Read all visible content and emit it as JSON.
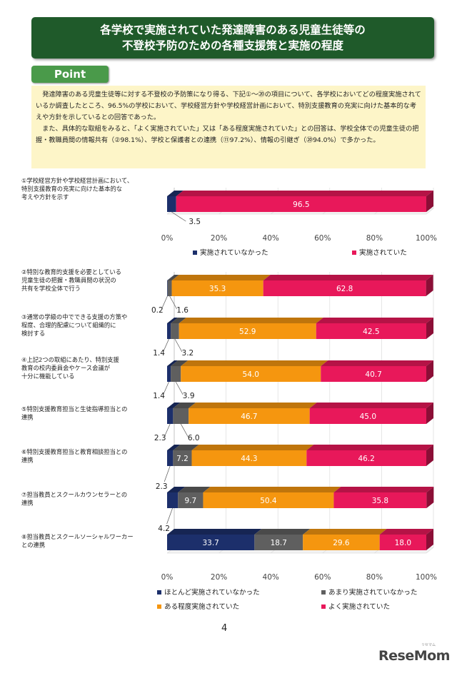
{
  "header": {
    "title_line1": "各学校で実施されていた発達障害のある児童生徒等の",
    "title_line2": "不登校予防のための各種支援策と実施の程度",
    "point_label": "Point"
  },
  "summary": {
    "para1": "発達障害のある児童生徒等に対する不登校の予防策になり得る、下記①～⑳の項目について、各学校においてどの程度実施されているか調査したところ、96.5%の学校において、学校経営方針や学校経営計画において、特別支援教育の充実に向けた基本的な考えや方針を示しているとの回答であった。",
    "para2": "また、具体的な取組をみると、「よく実施されていた」又は「ある程度実施されていた」との回答は、学校全体での児童生徒の把握・教職員間の情報共有（②98.1%）、学校と保護者との連携（⑪97.2%）、情報の引継ぎ（⑳94.0%）で多かった。"
  },
  "chart_data": [
    {
      "type": "bar",
      "orientation": "horizontal",
      "stacked": true,
      "categories": [
        "①学校経営方針や学校経営計画において、特別支援教育の充実に向けた基本的な考えや方針を示す"
      ],
      "category_lines": [
        [
          "①学校経営方針や学校経営計画において、",
          "特別支援教育の充実に向けた基本的な",
          "考えや方針を示す"
        ]
      ],
      "series": [
        {
          "name": "実施されていなかった",
          "color": "#1c2f6b",
          "values": [
            3.5
          ]
        },
        {
          "name": "実施されていた",
          "color": "#e8185a",
          "values": [
            96.5
          ]
        }
      ],
      "xlim": [
        0,
        100
      ],
      "xticks": [
        "0%",
        "20%",
        "40%",
        "60%",
        "80%",
        "100%"
      ],
      "legend_position": "bottom"
    },
    {
      "type": "bar",
      "orientation": "horizontal",
      "stacked": true,
      "categories": [
        "②特別な教育的支援を必要としている児童生徒の把握・教職員間の状況の共有を学校全体で行う",
        "③通常の学級の中でできる支援の方策や程度、合理的配慮について組織的に検討する",
        "④上記2つの取組にあたり、特別支援教育の校内委員会やケース会議が十分に機能している",
        "⑤特別支援教育担当と生徒指導担当との連携",
        "⑥特別支援教育担当と教育相談担当との連携",
        "⑦担当教員とスクールカウンセラーとの連携",
        "⑧担当教員とスクールソーシャルワーカーとの連携"
      ],
      "category_lines": [
        [
          "②特別な教育的支援を必要としている",
          "児童生徒の把握・教職員間の状況の",
          "共有を学校全体で行う"
        ],
        [
          "③通常の学級の中でできる支援の方策や",
          "程度、合理的配慮について組織的に",
          "検討する"
        ],
        [
          "④上記2つの取組にあたり、特別支援",
          "教育の校内委員会やケース会議が",
          "十分に機能している"
        ],
        [
          "⑤特別支援教育担当と生徒指導担当との",
          "連携"
        ],
        [
          "⑥特別支援教育担当と教育相談担当との",
          "連携"
        ],
        [
          "⑦担当教員とスクールカウンセラーとの",
          "連携"
        ],
        [
          "⑧担当教員とスクールソーシャルワーカー",
          "との連携"
        ]
      ],
      "series": [
        {
          "name": "ほとんど実施されていなかった",
          "color": "#1c2f6b",
          "values": [
            0.2,
            1.4,
            1.4,
            2.3,
            2.3,
            4.2,
            33.7
          ]
        },
        {
          "name": "あまり実施されていなかった",
          "color": "#5f5f5f",
          "values": [
            1.6,
            3.2,
            3.9,
            6.0,
            7.2,
            9.7,
            18.7
          ]
        },
        {
          "name": "ある程度実施されていた",
          "color": "#f5960f",
          "values": [
            35.3,
            52.9,
            54.0,
            46.7,
            44.3,
            50.4,
            29.6
          ]
        },
        {
          "name": "よく実施されていた",
          "color": "#e8185a",
          "values": [
            62.8,
            42.5,
            40.7,
            45.0,
            46.2,
            35.8,
            18.0
          ]
        }
      ],
      "xlim": [
        0,
        100
      ],
      "xticks": [
        "0%",
        "20%",
        "40%",
        "60%",
        "80%",
        "100%"
      ],
      "legend_position": "bottom"
    }
  ],
  "page_number": "4",
  "logo": "ReseMom",
  "logo_small": "リセマム"
}
